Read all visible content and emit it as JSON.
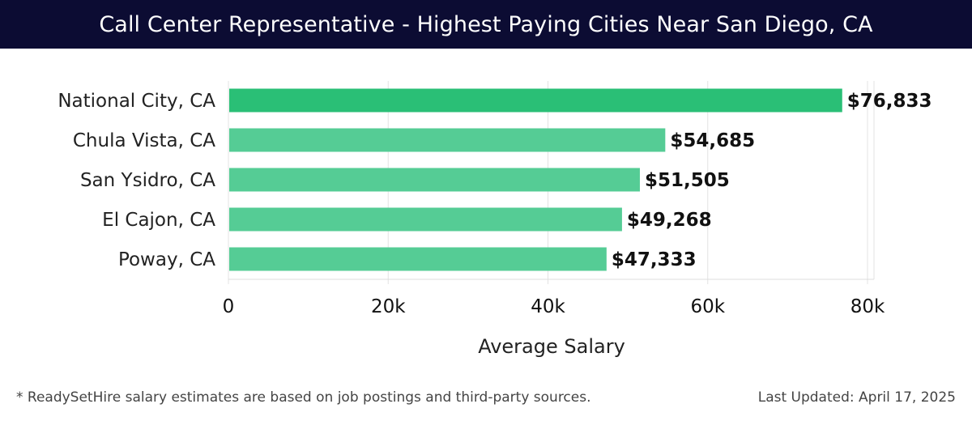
{
  "header": {
    "title": "Call Center Representative - Highest Paying Cities Near San Diego, CA"
  },
  "footer": {
    "note": "* ReadySetHire salary estimates are based on job postings and third-party sources.",
    "updated": "Last Updated: April 17, 2025"
  },
  "colors": {
    "header_bg": "#0c0c33",
    "bar_top": "#2abf76",
    "bar": "#55cc95",
    "grid": "#e3e3e3"
  },
  "chart_data": {
    "type": "bar",
    "orientation": "horizontal",
    "categories": [
      "National City, CA",
      "Chula Vista, CA",
      "San Ysidro, CA",
      "El Cajon, CA",
      "Poway, CA"
    ],
    "values": [
      76833,
      54685,
      51505,
      49268,
      47333
    ],
    "value_labels": [
      "$76,833",
      "$54,685",
      "$51,505",
      "$49,268",
      "$47,333"
    ],
    "xlabel": "Average Salary",
    "xlim": [
      0,
      80000
    ],
    "xticks": [
      0,
      20000,
      40000,
      60000,
      80000
    ],
    "xtick_labels": [
      "0",
      "20k",
      "40k",
      "60k",
      "80k"
    ],
    "grid": true,
    "legend": "none"
  }
}
